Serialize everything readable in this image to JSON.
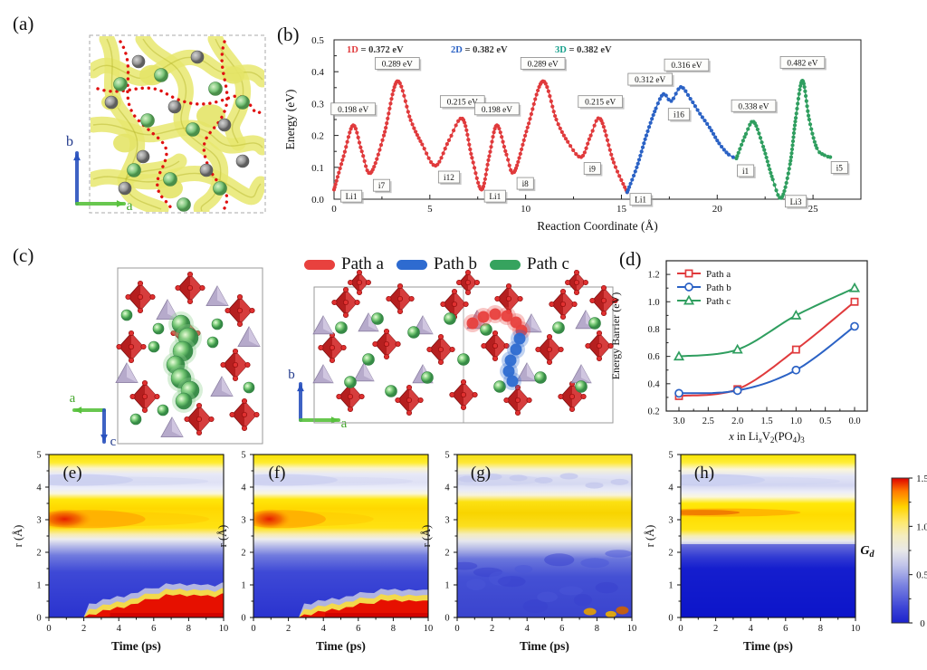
{
  "figure": {
    "background": "#ffffff",
    "panels": {
      "a": {
        "label": "(a)",
        "axes": {
          "up": "b",
          "right": "a"
        }
      },
      "b": {
        "label": "(b)"
      },
      "c": {
        "label": "(c)",
        "legend": [
          {
            "label": "Path a",
            "color": "#e8413e"
          },
          {
            "label": "Path b",
            "color": "#2e6bd0"
          },
          {
            "label": "Path c",
            "color": "#36a35e"
          }
        ],
        "left_axes": {
          "left": "a",
          "down": "c"
        },
        "right_axes": {
          "up": "b",
          "right": "a"
        }
      },
      "d": {
        "label": "(d)"
      },
      "e": {
        "label": "(e)"
      },
      "f": {
        "label": "(f)"
      },
      "g": {
        "label": "(g)"
      },
      "h": {
        "label": "(h)"
      }
    },
    "colorbar": {
      "label_parts": [
        {
          "t": "G",
          "italic": true,
          "bold": true
        },
        {
          "t": "d",
          "sub": true,
          "italic": true,
          "bold": true
        }
      ],
      "min": 0,
      "max": 1.5,
      "ticks": [
        0,
        0.5,
        1.0,
        1.5
      ],
      "stops_top_to_bottom": [
        [
          0,
          "#dd0000"
        ],
        [
          0.09,
          "#ff7a00"
        ],
        [
          0.2,
          "#ffd400"
        ],
        [
          0.3,
          "#ffe96a"
        ],
        [
          0.4,
          "#f4edc0"
        ],
        [
          0.5,
          "#e8e8e8"
        ],
        [
          0.6,
          "#c2c5ea"
        ],
        [
          0.74,
          "#7a82e0"
        ],
        [
          0.9,
          "#3a42d6"
        ],
        [
          1,
          "#1c22cc"
        ]
      ]
    }
  },
  "chart_data": [
    {
      "id": "b",
      "type": "line",
      "xlabel": "Reaction Coordinate (Å)",
      "ylabel": "Energy (eV)",
      "xlim": [
        0,
        27.5
      ],
      "ylim": [
        0,
        0.5
      ],
      "xticks": [
        0,
        5,
        10,
        15,
        20,
        25
      ],
      "yticks": [
        0.0,
        0.1,
        0.2,
        0.3,
        0.4,
        0.5
      ],
      "legend": [
        {
          "dim": "1D",
          "value": " = 0.372 eV",
          "color": "#e03a3c"
        },
        {
          "dim": "2D",
          "value": " = 0.382 eV",
          "color": "#2b62c5"
        },
        {
          "dim": "3D",
          "value": " = 0.382 eV",
          "color": "#18a08c"
        }
      ],
      "series": [
        {
          "name": "Path a (1D)",
          "color": "#e03a3c",
          "points": [
            [
              0,
              0.03
            ],
            [
              0.5,
              0.135
            ],
            [
              1.0,
              0.232
            ],
            [
              1.45,
              0.15
            ],
            [
              1.9,
              0.082
            ],
            [
              2.6,
              0.2
            ],
            [
              3.3,
              0.37
            ],
            [
              4.0,
              0.248
            ],
            [
              4.6,
              0.172
            ],
            [
              5.3,
              0.105
            ],
            [
              6.0,
              0.185
            ],
            [
              6.7,
              0.253
            ],
            [
              7.2,
              0.13
            ],
            [
              7.7,
              0.03
            ],
            [
              8.1,
              0.135
            ],
            [
              8.5,
              0.232
            ],
            [
              9.0,
              0.14
            ],
            [
              9.4,
              0.085
            ],
            [
              10.1,
              0.225
            ],
            [
              10.9,
              0.37
            ],
            [
              11.6,
              0.25
            ],
            [
              12.2,
              0.18
            ],
            [
              12.9,
              0.132
            ],
            [
              13.4,
              0.2
            ],
            [
              13.9,
              0.252
            ],
            [
              14.6,
              0.115
            ],
            [
              15.3,
              0.022
            ]
          ]
        },
        {
          "name": "Path b (2D)",
          "color": "#2b62c5",
          "points": [
            [
              15.3,
              0.022
            ],
            [
              15.8,
              0.1
            ],
            [
              16.3,
              0.2
            ],
            [
              16.8,
              0.285
            ],
            [
              17.2,
              0.33
            ],
            [
              17.6,
              0.308
            ],
            [
              18.1,
              0.352
            ],
            [
              18.6,
              0.315
            ],
            [
              19.1,
              0.268
            ],
            [
              19.6,
              0.225
            ],
            [
              20.1,
              0.175
            ],
            [
              20.6,
              0.14
            ],
            [
              21.0,
              0.128
            ]
          ]
        },
        {
          "name": "Path c (3D)",
          "color": "#2f9e5f",
          "points": [
            [
              21.0,
              0.128
            ],
            [
              21.5,
              0.205
            ],
            [
              21.9,
              0.243
            ],
            [
              22.4,
              0.165
            ],
            [
              22.9,
              0.062
            ],
            [
              23.35,
              0.004
            ],
            [
              23.8,
              0.11
            ],
            [
              24.1,
              0.255
            ],
            [
              24.45,
              0.372
            ],
            [
              24.8,
              0.25
            ],
            [
              25.2,
              0.16
            ],
            [
              25.6,
              0.138
            ],
            [
              25.9,
              0.132
            ]
          ]
        }
      ],
      "peak_labels": [
        {
          "text": "0.198 eV",
          "x": 1.0,
          "y": 0.262
        },
        {
          "text": "0.289 eV",
          "x": 3.3,
          "y": 0.405
        },
        {
          "text": "0.215 eV",
          "x": 6.7,
          "y": 0.285
        },
        {
          "text": "0.198 eV",
          "x": 8.5,
          "y": 0.262
        },
        {
          "text": "0.289 eV",
          "x": 10.9,
          "y": 0.405
        },
        {
          "text": "0.215 eV",
          "x": 13.9,
          "y": 0.285
        },
        {
          "text": "0.312 eV",
          "x": 16.5,
          "y": 0.355
        },
        {
          "text": "0.316 eV",
          "x": 18.4,
          "y": 0.4
        },
        {
          "text": "0.338 eV",
          "x": 21.9,
          "y": 0.272
        },
        {
          "text": "0.482 eV",
          "x": 24.45,
          "y": 0.408
        }
      ],
      "site_labels": [
        {
          "text": "Li1",
          "x": 0.35,
          "y": 0.028
        },
        {
          "text": "i7",
          "x": 2.05,
          "y": 0.062
        },
        {
          "text": "i12",
          "x": 5.45,
          "y": 0.088
        },
        {
          "text": "Li1",
          "x": 7.85,
          "y": 0.028
        },
        {
          "text": "i8",
          "x": 9.55,
          "y": 0.068
        },
        {
          "text": "i9",
          "x": 13.05,
          "y": 0.115
        },
        {
          "text": "Li1",
          "x": 15.45,
          "y": 0.018
        },
        {
          "text": "i16",
          "x": 17.45,
          "y": 0.285
        },
        {
          "text": "i1",
          "x": 21.05,
          "y": 0.108
        },
        {
          "text": "Li3",
          "x": 23.55,
          "y": 0.012
        },
        {
          "text": "i5",
          "x": 25.95,
          "y": 0.118
        }
      ]
    },
    {
      "id": "d",
      "type": "scatter-line",
      "ylabel": "Energy Barrier (eV)",
      "xlabel_parts": [
        {
          "t": "x",
          "italic": true
        },
        {
          "t": " in Li"
        },
        {
          "t": "x",
          "sub": true,
          "italic": true
        },
        {
          "t": "V"
        },
        {
          "t": "2",
          "sub": true
        },
        {
          "t": "(PO"
        },
        {
          "t": "4",
          "sub": true
        },
        {
          "t": ")"
        },
        {
          "t": "3",
          "sub": true
        }
      ],
      "x": [
        3.0,
        2.0,
        1.0,
        0.0
      ],
      "x_reversed": true,
      "xticks": [
        3.0,
        2.5,
        2.0,
        1.5,
        1.0,
        0.5,
        0.0
      ],
      "ylim": [
        0.2,
        1.3
      ],
      "yticks": [
        0.2,
        0.4,
        0.6,
        0.8,
        1.0,
        1.2
      ],
      "series": [
        {
          "name": "Path a",
          "marker": "square",
          "color": "#e03a3c",
          "values": [
            0.31,
            0.36,
            0.65,
            1.0
          ]
        },
        {
          "name": "Path b",
          "marker": "circle",
          "color": "#2b62c5",
          "values": [
            0.33,
            0.35,
            0.5,
            0.82
          ]
        },
        {
          "name": "Path c",
          "marker": "triangle",
          "color": "#2f9e5f",
          "values": [
            0.6,
            0.65,
            0.9,
            1.1
          ]
        }
      ]
    },
    {
      "id": "e",
      "type": "heatmap",
      "xlabel": "Time (ps)",
      "ylabel": "r (Å)",
      "xlim": [
        0,
        10
      ],
      "ylim": [
        0,
        5
      ],
      "xticks": [
        0,
        2,
        4,
        6,
        8,
        10
      ],
      "yticks": [
        0,
        1,
        2,
        3,
        4,
        5
      ],
      "value_label": "Gd",
      "value_range": [
        0,
        1.5
      ],
      "bands_r_color": [
        {
          "r": [
            4.55,
            5.0
          ],
          "value": 1.1,
          "desc": "yellow"
        },
        {
          "r": [
            3.8,
            4.55
          ],
          "value": 0.45,
          "desc": "white-lavender"
        },
        {
          "r": [
            2.5,
            3.8
          ],
          "value": 1.15,
          "desc": "yellow, red-orange hot spot near r=3 for t<6"
        },
        {
          "r": [
            0,
            2.3
          ],
          "value": 0.1,
          "desc": "blue; red band below r=0.5 growing after t=2.3"
        }
      ],
      "gradient": [
        [
          0,
          "#f6e000"
        ],
        [
          0.05,
          "#ffec30"
        ],
        [
          0.085,
          "#fbf4cc"
        ],
        [
          0.12,
          "#e7e9f7"
        ],
        [
          0.17,
          "#dfe1f5"
        ],
        [
          0.21,
          "#eceefa"
        ],
        [
          0.24,
          "#faf6da"
        ],
        [
          0.275,
          "#ffe70a"
        ],
        [
          0.33,
          "#ffd800"
        ],
        [
          0.45,
          "#ffe212"
        ],
        [
          0.49,
          "#f8ecb0"
        ],
        [
          0.52,
          "#ededf0"
        ],
        [
          0.56,
          "#b9bde9"
        ],
        [
          0.62,
          "#707ade"
        ],
        [
          0.72,
          "#3e49d6"
        ],
        [
          1,
          "#2a33cf"
        ]
      ],
      "features": {
        "hot_spot": 1.0,
        "hot_tail": 6,
        "lavender": 0.8,
        "bottom_red": {
          "onset": 2.3,
          "max": 22
        },
        "mottle": 0,
        "bottom_spots": 0,
        "orange_streak": 0,
        "deep_blue": 0
      }
    },
    {
      "id": "f",
      "type": "heatmap",
      "xlabel": "Time (ps)",
      "ylabel": "r (Å)",
      "xlim": [
        0,
        10
      ],
      "ylim": [
        0,
        5
      ],
      "xticks": [
        0,
        2,
        4,
        6,
        8,
        10
      ],
      "yticks": [
        0,
        1,
        2,
        3,
        4,
        5
      ],
      "value_label": "Gd",
      "value_range": [
        0,
        1.5
      ],
      "bands_r_color": [
        {
          "r": [
            4.55,
            5.0
          ],
          "value": 1.1,
          "desc": "yellow"
        },
        {
          "r": [
            3.8,
            4.55
          ],
          "value": 0.45,
          "desc": "white-lavender"
        },
        {
          "r": [
            2.5,
            3.8
          ],
          "value": 1.1,
          "desc": "yellow, orange spot near r=3 for t<4"
        },
        {
          "r": [
            0,
            2.3
          ],
          "value": 0.1,
          "desc": "blue; red band below r=0.4 growing after t=3"
        }
      ],
      "gradient": [
        [
          0,
          "#f6e000"
        ],
        [
          0.05,
          "#ffec30"
        ],
        [
          0.085,
          "#fbf4cc"
        ],
        [
          0.12,
          "#e7e9f7"
        ],
        [
          0.17,
          "#dfe1f5"
        ],
        [
          0.21,
          "#eceefa"
        ],
        [
          0.24,
          "#faf6da"
        ],
        [
          0.275,
          "#ffe70a"
        ],
        [
          0.33,
          "#ffd800"
        ],
        [
          0.45,
          "#ffe212"
        ],
        [
          0.49,
          "#f8ecb0"
        ],
        [
          0.52,
          "#ededf0"
        ],
        [
          0.56,
          "#b9bde9"
        ],
        [
          0.62,
          "#707ade"
        ],
        [
          0.72,
          "#3e49d6"
        ],
        [
          1,
          "#2a33cf"
        ]
      ],
      "features": {
        "hot_spot": 0.8,
        "hot_tail": 4.5,
        "lavender": 0.7,
        "bottom_red": {
          "onset": 2.9,
          "max": 16
        },
        "mottle": 0,
        "bottom_spots": 0,
        "orange_streak": 0,
        "deep_blue": 0
      }
    },
    {
      "id": "g",
      "type": "heatmap",
      "xlabel": "Time (ps)",
      "ylabel": "r (Å)",
      "xlim": [
        0,
        10
      ],
      "ylim": [
        0,
        5
      ],
      "xticks": [
        0,
        2,
        4,
        6,
        8,
        10
      ],
      "yticks": [
        0,
        1,
        2,
        3,
        4,
        5
      ],
      "value_label": "Gd",
      "value_range": [
        0,
        1.5
      ],
      "bands_r_color": [
        {
          "r": [
            4.6,
            5.0
          ],
          "value": 1.0,
          "desc": "yellow"
        },
        {
          "r": [
            3.8,
            4.6
          ],
          "value": 0.4,
          "desc": "white with faint blue speckle"
        },
        {
          "r": [
            2.6,
            3.8
          ],
          "value": 1.0,
          "desc": "yellow, uniform in time"
        },
        {
          "r": [
            0,
            2.4
          ],
          "value": 0.15,
          "desc": "mottled blue; small orange spots near bottom right"
        }
      ],
      "gradient": [
        [
          0,
          "#f2de10"
        ],
        [
          0.05,
          "#ffe838"
        ],
        [
          0.09,
          "#f6f2d2"
        ],
        [
          0.13,
          "#e2e4f4"
        ],
        [
          0.18,
          "#d8dbf2"
        ],
        [
          0.22,
          "#e9ebf8"
        ],
        [
          0.25,
          "#f8f3d8"
        ],
        [
          0.29,
          "#fce112"
        ],
        [
          0.36,
          "#f8d400"
        ],
        [
          0.44,
          "#fbdf20"
        ],
        [
          0.49,
          "#f4ecc0"
        ],
        [
          0.53,
          "#e6e7ee"
        ],
        [
          0.58,
          "#b3b8e6"
        ],
        [
          0.64,
          "#6b76dc"
        ],
        [
          0.75,
          "#4450d4"
        ],
        [
          1,
          "#3a44ce"
        ]
      ],
      "features": {
        "hot_spot": 0,
        "hot_tail": 0,
        "lavender": 0.5,
        "bottom_red": null,
        "mottle": 1,
        "bottom_spots": 1,
        "orange_streak": 0,
        "deep_blue": 0
      }
    },
    {
      "id": "h",
      "type": "heatmap",
      "xlabel": "Time (ps)",
      "ylabel": "r (Å)",
      "xlim": [
        0,
        10
      ],
      "ylim": [
        0,
        5
      ],
      "xticks": [
        0,
        2,
        4,
        6,
        8,
        10
      ],
      "yticks": [
        0,
        1,
        2,
        3,
        4,
        5
      ],
      "value_label": "Gd",
      "value_range": [
        0,
        1.5
      ],
      "bands_r_color": [
        {
          "r": [
            4.6,
            5.0
          ],
          "value": 1.05,
          "desc": "yellow"
        },
        {
          "r": [
            3.8,
            4.6
          ],
          "value": 0.4,
          "desc": "white-lavender band"
        },
        {
          "r": [
            2.5,
            3.8
          ],
          "value": 1.1,
          "desc": "yellow with orange streak at r=3.2"
        },
        {
          "r": [
            0,
            2.3
          ],
          "value": 0.02,
          "desc": "deep uniform blue"
        }
      ],
      "gradient": [
        [
          0,
          "#f8e400"
        ],
        [
          0.05,
          "#ffee3a"
        ],
        [
          0.09,
          "#fcf6d8"
        ],
        [
          0.13,
          "#e4e6f6"
        ],
        [
          0.19,
          "#d4d7f2"
        ],
        [
          0.23,
          "#edeef9"
        ],
        [
          0.26,
          "#fbf7dc"
        ],
        [
          0.3,
          "#ffe90a"
        ],
        [
          0.37,
          "#ffdc00"
        ],
        [
          0.46,
          "#ffe514"
        ],
        [
          0.5,
          "#f6eeb6"
        ],
        [
          0.53,
          "#e9e9ee"
        ],
        [
          0.57,
          "#aab0e6"
        ],
        [
          0.63,
          "#5660da"
        ],
        [
          0.7,
          "#1e28d0"
        ],
        [
          1,
          "#0d16c8"
        ]
      ],
      "features": {
        "hot_spot": 0,
        "hot_tail": 0,
        "lavender": 0.9,
        "bottom_red": null,
        "mottle": 0,
        "bottom_spots": 0,
        "orange_streak": 1,
        "deep_blue": 1
      }
    }
  ]
}
